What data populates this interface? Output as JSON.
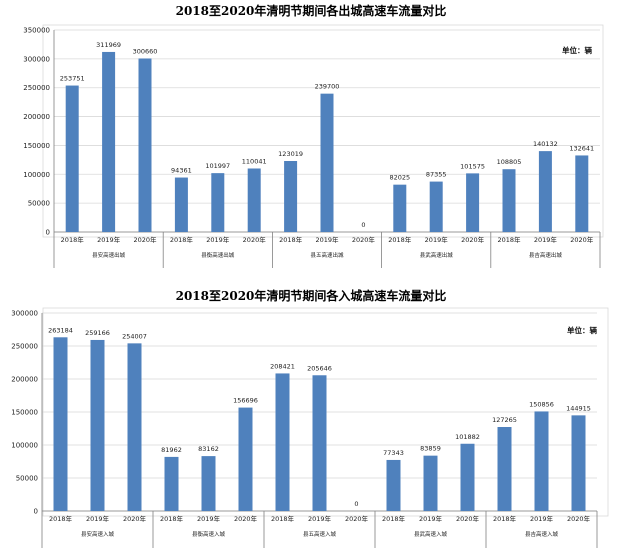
{
  "chart_data": [
    {
      "type": "bar",
      "title": "2018至2020年清明节期间各出城高速车流量对比",
      "unit_label": "单位：辆",
      "ylim": [
        0,
        350000
      ],
      "yticks": [
        0,
        50000,
        100000,
        150000,
        200000,
        250000,
        300000,
        350000
      ],
      "groups": [
        {
          "name": "县安高速出城",
          "categories": [
            "2018年",
            "2019年",
            "2020年"
          ],
          "values": [
            253751,
            311969,
            300660
          ]
        },
        {
          "name": "县衡高速出城",
          "categories": [
            "2018年",
            "2019年",
            "2020年"
          ],
          "values": [
            94361,
            101997,
            110041
          ]
        },
        {
          "name": "县五高速出城",
          "categories": [
            "2018年",
            "2019年",
            "2020年"
          ],
          "values": [
            123019,
            239700,
            0
          ]
        },
        {
          "name": "县武高速出城",
          "categories": [
            "2018年",
            "2019年",
            "2020年"
          ],
          "values": [
            82025,
            87355,
            101575
          ]
        },
        {
          "name": "县吉高速出城",
          "categories": [
            "2018年",
            "2019年",
            "2020年"
          ],
          "values": [
            108805,
            140132,
            132641
          ]
        }
      ],
      "bar_color": "#4f81bd",
      "grid": true
    },
    {
      "type": "bar",
      "title": "2018至2020年清明节期间各入城高速车流量对比",
      "unit_label": "单位：辆",
      "ylim": [
        0,
        300000
      ],
      "yticks": [
        0,
        50000,
        100000,
        150000,
        200000,
        250000,
        300000
      ],
      "groups": [
        {
          "name": "县安高速入城",
          "categories": [
            "2018年",
            "2019年",
            "2020年"
          ],
          "values": [
            263184,
            259166,
            254007
          ]
        },
        {
          "name": "县衡高速入城",
          "categories": [
            "2018年",
            "2019年",
            "2020年"
          ],
          "values": [
            81962,
            83162,
            156696
          ]
        },
        {
          "name": "县五高速入城",
          "categories": [
            "2018年",
            "2019年",
            "2020年"
          ],
          "values": [
            208421,
            205646,
            0
          ]
        },
        {
          "name": "县武高速入城",
          "categories": [
            "2018年",
            "2019年",
            "2020年"
          ],
          "values": [
            77343,
            83859,
            101882
          ]
        },
        {
          "name": "县吉高速入城",
          "categories": [
            "2018年",
            "2019年",
            "2020年"
          ],
          "values": [
            127265,
            150856,
            144915
          ]
        }
      ],
      "bar_color": "#4f81bd",
      "grid": true
    }
  ]
}
